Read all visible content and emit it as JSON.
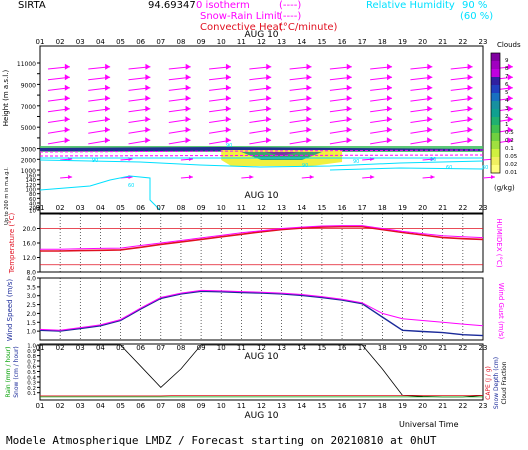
{
  "header": {
    "site": "SIRTA",
    "site_code": "94.69347",
    "legend_isotherm": "0 isotherm",
    "legend_isotherm_style": "(----)",
    "legend_snow_rain": "Snow-Rain Limit",
    "legend_snow_rain_style": "(----)",
    "legend_conv": "Convective Heat.",
    "legend_conv_units": "(°C/minute)",
    "legend_rh": "Relative Humidity",
    "legend_rh_90": "90 %",
    "legend_rh_60": "(60 %)"
  },
  "hours": [
    "01",
    "02",
    "03",
    "04",
    "05",
    "06",
    "07",
    "08",
    "09",
    "10",
    "11",
    "12",
    "13",
    "14",
    "15",
    "16",
    "17",
    "18",
    "19",
    "20",
    "21",
    "22",
    "23"
  ],
  "date_label": "AUG 10",
  "colors": {
    "magenta": "#ff00ff",
    "red": "#e01020",
    "cyan": "#00e0ff",
    "navy": "#1a2a9a",
    "black": "#000000"
  },
  "chart_data": [
    {
      "type": "heatmap",
      "name": "clouds_wind_profile",
      "ylabel": "Height (m a.s.l.)",
      "ylabel_low": "Up to 200 m in m.a.g.l.",
      "yticks_upper": [
        1000,
        2000,
        3000,
        4000,
        5000,
        6000,
        7000,
        8000,
        9000,
        10000,
        11000
      ],
      "yticks_lower": [
        10,
        20,
        40,
        60,
        80,
        100,
        120,
        140,
        160
      ],
      "colorbar_title": "Clouds",
      "colorbar_units": "(g/kg)",
      "colorbar_ticks": [
        "9",
        "8",
        "7",
        "6",
        "5",
        "4",
        "3",
        "2",
        "1",
        "0.5",
        "0.2",
        "0.1",
        "0.05",
        "0.02",
        "0.01"
      ],
      "colorbar_colors": [
        "#8000a0",
        "#a000c0",
        "#c000e0",
        "#3020a0",
        "#2040c0",
        "#1870c0",
        "#1890a0",
        "#10a090",
        "#20b070",
        "#40c050",
        "#70d040",
        "#a0e040",
        "#d0f040",
        "#f0f060",
        "#ffff80"
      ],
      "wind_levels_m": [
        11000,
        10000,
        9000,
        8000,
        7000,
        6000,
        5000,
        4000
      ],
      "cloud_layer": {
        "from_hour": 10,
        "to_hour": 16,
        "base_m": 1500,
        "top_m": 2400,
        "max_gkg": 0.5
      },
      "rh_labels": [
        "90",
        "60",
        "90",
        "90",
        "90",
        "90",
        "60",
        "60"
      ]
    },
    {
      "type": "line",
      "name": "temperature",
      "ylabel": "Temperature (°C)",
      "y2label": "HUMIDEX (°C)",
      "ylim": [
        8,
        24
      ],
      "yticks": [
        8.0,
        12.0,
        16.0,
        20.0
      ],
      "x": [
        1,
        2,
        3,
        4,
        5,
        6,
        7,
        8,
        9,
        10,
        11,
        12,
        13,
        14,
        15,
        16,
        17,
        18,
        19,
        20,
        21,
        22,
        23
      ],
      "series": [
        {
          "name": "Temperature",
          "color": "red",
          "values": [
            13.8,
            13.8,
            13.9,
            14.0,
            14.1,
            14.8,
            15.6,
            16.3,
            17.0,
            17.7,
            18.4,
            19.1,
            19.7,
            20.1,
            20.4,
            20.5,
            20.5,
            19.7,
            18.9,
            18.2,
            17.5,
            17.2,
            17.0
          ]
        },
        {
          "name": "HUMIDEX",
          "color": "magenta",
          "values": [
            14.3,
            14.3,
            14.4,
            14.5,
            14.6,
            15.3,
            16.0,
            16.7,
            17.4,
            18.1,
            18.8,
            19.4,
            20.0,
            20.4,
            20.7,
            20.8,
            20.8,
            20.0,
            19.2,
            18.6,
            18.0,
            17.7,
            17.5
          ]
        }
      ],
      "reference_lines": [
        20.0,
        10.0
      ]
    },
    {
      "type": "line",
      "name": "wind",
      "ylabel": "Wind Speed (m/s)",
      "y2label": "Wind Gust (m/s)",
      "ylim": [
        0.5,
        4.0
      ],
      "yticks": [
        1.0,
        1.5,
        2.0,
        2.5,
        3.0,
        3.5,
        4.0
      ],
      "ytick_labels": [
        "1.0",
        "1.5",
        "2.0",
        "2.5",
        "3.0",
        "3.5",
        "4.0"
      ],
      "x": [
        1,
        2,
        3,
        4,
        5,
        6,
        7,
        8,
        9,
        10,
        11,
        12,
        13,
        14,
        15,
        16,
        17,
        18,
        19,
        20,
        21,
        22,
        23
      ],
      "series": [
        {
          "name": "Wind Speed",
          "color": "navy",
          "values": [
            1.05,
            1.0,
            1.15,
            1.3,
            1.6,
            2.25,
            2.85,
            3.1,
            3.25,
            3.22,
            3.18,
            3.15,
            3.1,
            3.02,
            2.9,
            2.75,
            2.55,
            1.8,
            1.05,
            0.98,
            0.92,
            0.8,
            0.75
          ]
        },
        {
          "name": "Wind Gust",
          "color": "magenta",
          "values": [
            1.1,
            1.05,
            1.2,
            1.35,
            1.65,
            2.3,
            2.9,
            3.15,
            3.3,
            3.27,
            3.23,
            3.2,
            3.15,
            3.07,
            2.95,
            2.8,
            2.6,
            2.0,
            1.7,
            1.6,
            1.5,
            1.4,
            1.3
          ]
        }
      ]
    },
    {
      "type": "line",
      "name": "precipitation",
      "ylabel": "Rain (mm / hour)",
      "ylabel2": "Snow (cm / hour)",
      "y2label": "CAPE (J / g)",
      "y2label2": "Snow Depth (cm)",
      "y2label3": "Cloud Fraction",
      "ylim": [
        0.0,
        1.0
      ],
      "yticks": [
        0.1,
        0.2,
        0.3,
        0.4,
        0.5,
        0.6,
        0.7,
        0.8,
        0.9,
        1.0
      ],
      "ytick_labels": [
        "0.1",
        "0.2",
        "0.3",
        "0.4",
        "0.5",
        "0.6",
        "0.7",
        "0.8",
        "0.9",
        "1.0"
      ],
      "x": [
        1,
        2,
        3,
        4,
        5,
        6,
        7,
        8,
        9,
        10,
        11,
        12,
        13,
        14,
        15,
        16,
        17,
        18,
        19,
        20,
        21,
        22,
        23
      ],
      "series": [
        {
          "name": "Cloud Fraction",
          "color": "black",
          "values": [
            1.0,
            1.0,
            1.0,
            1.0,
            1.0,
            0.6,
            0.2,
            0.55,
            1.0,
            1.0,
            1.0,
            1.0,
            1.0,
            1.0,
            1.0,
            1.0,
            1.0,
            0.55,
            0.05,
            0.03,
            0.02,
            0.02,
            0.05
          ]
        },
        {
          "name": "CAPE",
          "color": "red",
          "values": [
            0.04,
            0.04,
            0.04,
            0.04,
            0.04,
            0.04,
            0.04,
            0.05,
            0.05,
            0.05,
            0.05,
            0.05,
            0.05,
            0.05,
            0.05,
            0.05,
            0.05,
            0.05,
            0.05,
            0.05,
            0.05,
            0.05,
            0.05
          ]
        },
        {
          "name": "Rain",
          "color": "green",
          "values": [
            0.02,
            0.02,
            0.02,
            0.02,
            0.02,
            0.02,
            0.02,
            0.02,
            0.02,
            0.02,
            0.02,
            0.02,
            0.02,
            0.02,
            0.02,
            0.02,
            0.02,
            0.02,
            0.02,
            0.02,
            0.02,
            0.02,
            0.02
          ]
        }
      ]
    }
  ],
  "footer": {
    "universal_time": "Universal Time",
    "model_title": "Modele Atmospherique LMDZ / Forecast starting on 20210810 at 0hUT"
  }
}
